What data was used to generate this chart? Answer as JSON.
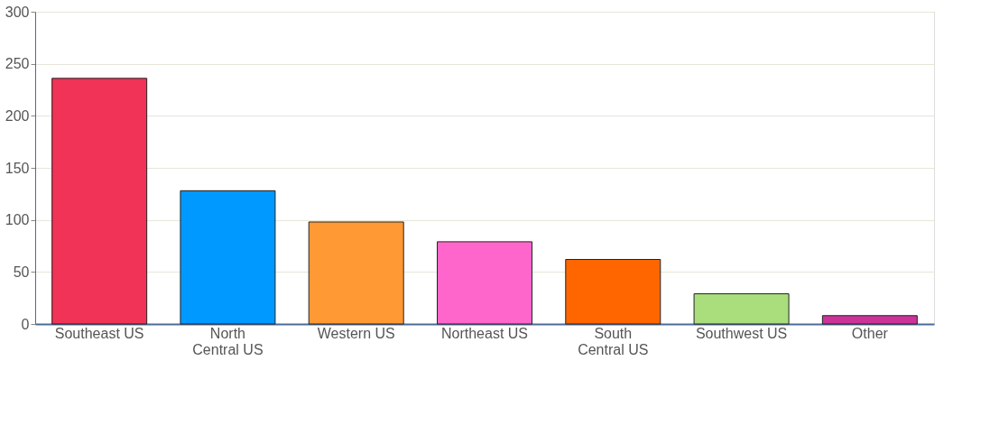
{
  "chart_data": {
    "type": "bar",
    "categories": [
      "Southeast US",
      "North\nCentral US",
      "Western US",
      "Northeast US",
      "South\nCentral US",
      "Southwest US",
      "Other"
    ],
    "values": [
      236,
      128,
      98,
      79,
      62,
      29,
      8
    ],
    "colors": [
      "#f03356",
      "#0099ff",
      "#ff9933",
      "#ff66cc",
      "#ff6600",
      "#aade7c",
      "#cc3399"
    ],
    "ylim": [
      0,
      300
    ],
    "yticks": [
      0,
      50,
      100,
      150,
      200,
      250,
      300
    ],
    "grid": "y",
    "legend": false
  }
}
